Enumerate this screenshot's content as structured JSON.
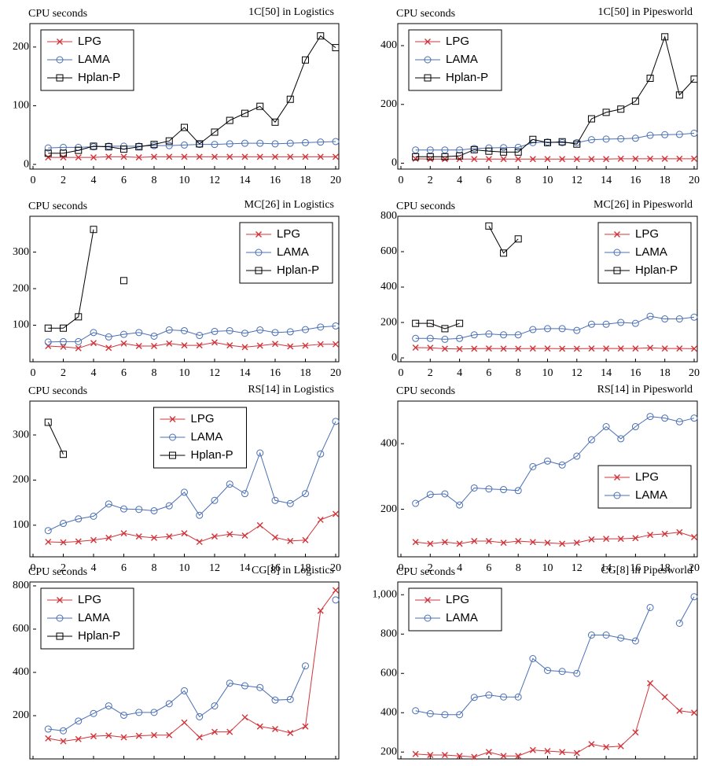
{
  "chart_data": [
    {
      "type": "line",
      "title": "1C[50] in Logistics",
      "ylabel": "CPU seconds",
      "x": [
        1,
        2,
        3,
        4,
        5,
        6,
        7,
        8,
        9,
        10,
        11,
        12,
        13,
        14,
        15,
        16,
        17,
        18,
        19,
        20
      ],
      "xlim": [
        0,
        20
      ],
      "xticks": [
        0,
        2,
        4,
        6,
        8,
        10,
        12,
        14,
        16,
        18,
        20
      ],
      "ylim": [
        -8,
        240
      ],
      "yticks": [
        0,
        100,
        200
      ],
      "legend": "upper left",
      "series": [
        {
          "name": "LPG",
          "color": "#d0343a",
          "marker": "x",
          "values": [
            12,
            12,
            12,
            12,
            13,
            13,
            12,
            13,
            13,
            13,
            13,
            13,
            13,
            13,
            13,
            13,
            13,
            13,
            13,
            13
          ]
        },
        {
          "name": "LAMA",
          "color": "#4a6fb5",
          "marker": "circle",
          "values": [
            28,
            29,
            29,
            30,
            31,
            31,
            31,
            32,
            32,
            33,
            34,
            34,
            35,
            36,
            36,
            35,
            36,
            37,
            38,
            39
          ]
        },
        {
          "name": "Hplan-P",
          "color": "#000000",
          "marker": "square",
          "values": [
            19,
            19,
            24,
            31,
            30,
            26,
            30,
            34,
            40,
            63,
            35,
            55,
            75,
            87,
            99,
            72,
            111,
            178,
            219,
            199
          ]
        }
      ]
    },
    {
      "type": "line",
      "title": "1C[50] in Pipesworld",
      "ylabel": "CPU seconds",
      "x": [
        1,
        2,
        3,
        4,
        5,
        6,
        7,
        8,
        9,
        10,
        11,
        12,
        13,
        14,
        15,
        16,
        17,
        18,
        19,
        20
      ],
      "xlim": [
        0,
        20
      ],
      "xticks": [
        0,
        2,
        4,
        6,
        8,
        10,
        12,
        14,
        16,
        18,
        20
      ],
      "ylim": [
        -20,
        475
      ],
      "yticks": [
        0,
        200,
        400
      ],
      "legend": "upper left",
      "series": [
        {
          "name": "LPG",
          "color": "#d0343a",
          "marker": "x",
          "values": [
            15,
            14,
            14,
            14,
            14,
            14,
            14,
            14,
            14,
            14,
            14,
            14,
            14,
            14,
            15,
            15,
            15,
            15,
            15,
            15
          ]
        },
        {
          "name": "LAMA",
          "color": "#4a6fb5",
          "marker": "circle",
          "values": [
            45,
            45,
            45,
            45,
            50,
            52,
            53,
            54,
            70,
            72,
            70,
            70,
            80,
            82,
            83,
            85,
            95,
            97,
            98,
            102
          ]
        },
        {
          "name": "Hplan-P",
          "color": "#000000",
          "marker": "square",
          "values": [
            22,
            22,
            22,
            25,
            46,
            41,
            38,
            38,
            81,
            70,
            73,
            65,
            151,
            173,
            184,
            211,
            289,
            430,
            232,
            286
          ]
        }
      ]
    },
    {
      "type": "line",
      "title": "MC[26] in Logistics",
      "ylabel": "CPU seconds",
      "x": [
        1,
        2,
        3,
        4,
        5,
        6,
        7,
        8,
        9,
        10,
        11,
        12,
        13,
        14,
        15,
        16,
        17,
        18,
        19,
        20
      ],
      "xlim": [
        0,
        20
      ],
      "xticks": [
        0,
        2,
        4,
        6,
        8,
        10,
        12,
        14,
        16,
        18,
        20
      ],
      "ylim": [
        0,
        398
      ],
      "yticks": [
        100,
        200,
        300
      ],
      "legend": "upper right",
      "series": [
        {
          "name": "LPG",
          "color": "#d0343a",
          "marker": "x",
          "values": [
            43,
            41,
            37,
            51,
            38,
            50,
            43,
            43,
            50,
            45,
            45,
            53,
            45,
            40,
            44,
            49,
            42,
            44,
            48,
            48
          ]
        },
        {
          "name": "LAMA",
          "color": "#4a6fb5",
          "marker": "circle",
          "values": [
            54,
            55,
            55,
            80,
            68,
            75,
            80,
            70,
            87,
            85,
            72,
            83,
            85,
            78,
            87,
            80,
            82,
            88,
            95,
            98
          ]
        },
        {
          "name": "Hplan-P",
          "color": "#000000",
          "marker": "square",
          "values": [
            92,
            92,
            123,
            362,
            null,
            222,
            null,
            null,
            null,
            null,
            null,
            null,
            null,
            null,
            null,
            null,
            null,
            null,
            null,
            null
          ]
        }
      ]
    },
    {
      "type": "line",
      "title": "MC[26] in Pipesworld",
      "ylabel": "CPU seconds",
      "x": [
        1,
        2,
        3,
        4,
        5,
        6,
        7,
        8,
        9,
        10,
        11,
        12,
        13,
        14,
        15,
        16,
        17,
        18,
        19,
        20
      ],
      "xlim": [
        0,
        20
      ],
      "xticks": [
        0,
        2,
        4,
        6,
        8,
        10,
        12,
        14,
        16,
        18,
        20
      ],
      "ylim": [
        -22,
        800
      ],
      "yticks": [
        0,
        200,
        400,
        600,
        800
      ],
      "legend": "upper right",
      "series": [
        {
          "name": "LPG",
          "color": "#d0343a",
          "marker": "x",
          "values": [
            58,
            57,
            52,
            50,
            52,
            53,
            52,
            52,
            53,
            53,
            52,
            52,
            53,
            53,
            53,
            53,
            57,
            53,
            53,
            52
          ]
        },
        {
          "name": "LAMA",
          "color": "#4a6fb5",
          "marker": "circle",
          "values": [
            110,
            110,
            105,
            110,
            130,
            135,
            130,
            130,
            160,
            165,
            165,
            155,
            190,
            190,
            200,
            195,
            235,
            220,
            220,
            230
          ]
        },
        {
          "name": "Hplan-P",
          "color": "#000000",
          "marker": "square",
          "values": [
            195,
            195,
            165,
            195,
            null,
            745,
            592,
            672,
            null,
            null,
            null,
            null,
            null,
            null,
            null,
            null,
            null,
            null,
            null,
            null
          ]
        }
      ]
    },
    {
      "type": "line",
      "title": "RS[14] in Logistics",
      "ylabel": "CPU seconds",
      "x": [
        1,
        2,
        3,
        4,
        5,
        6,
        7,
        8,
        9,
        10,
        11,
        12,
        13,
        14,
        15,
        16,
        17,
        18,
        19,
        20
      ],
      "xlim": [
        0,
        20
      ],
      "xticks": [
        0,
        2,
        4,
        6,
        8,
        10,
        12,
        14,
        16,
        18,
        20
      ],
      "ylim": [
        30,
        375
      ],
      "yticks": [
        100,
        200,
        300
      ],
      "legend": "upper center",
      "series": [
        {
          "name": "LPG",
          "color": "#d0343a",
          "marker": "x",
          "values": [
            63,
            62,
            64,
            67,
            72,
            82,
            75,
            72,
            75,
            82,
            63,
            75,
            80,
            77,
            100,
            73,
            65,
            67,
            112,
            125
          ]
        },
        {
          "name": "LAMA",
          "color": "#4a6fb5",
          "marker": "circle",
          "values": [
            88,
            104,
            114,
            120,
            147,
            136,
            135,
            132,
            143,
            173,
            122,
            155,
            191,
            170,
            260,
            155,
            148,
            170,
            258,
            330
          ]
        },
        {
          "name": "Hplan-P",
          "color": "#000000",
          "marker": "square",
          "values": [
            328,
            257,
            null,
            null,
            null,
            null,
            null,
            null,
            null,
            null,
            null,
            null,
            null,
            null,
            null,
            null,
            null,
            null,
            null,
            null
          ]
        }
      ]
    },
    {
      "type": "line",
      "title": "RS[14] in Pipesworld",
      "ylabel": "CPU seconds",
      "x": [
        1,
        2,
        3,
        4,
        5,
        6,
        7,
        8,
        9,
        10,
        11,
        12,
        13,
        14,
        15,
        16,
        17,
        18,
        19,
        20
      ],
      "xlim": [
        0,
        20
      ],
      "xticks": [
        0,
        2,
        4,
        6,
        8,
        10,
        12,
        14,
        16,
        18,
        20
      ],
      "ylim": [
        55,
        530
      ],
      "yticks": [
        200,
        400
      ],
      "legend": "center right",
      "series": [
        {
          "name": "LPG",
          "color": "#d0343a",
          "marker": "x",
          "values": [
            100,
            95,
            100,
            95,
            103,
            103,
            98,
            103,
            100,
            98,
            95,
            98,
            108,
            110,
            110,
            112,
            122,
            125,
            130,
            115
          ]
        },
        {
          "name": "LAMA",
          "color": "#4a6fb5",
          "marker": "circle",
          "values": [
            218,
            245,
            247,
            213,
            265,
            262,
            260,
            257,
            330,
            347,
            335,
            362,
            412,
            452,
            415,
            452,
            483,
            478,
            467,
            478
          ]
        }
      ]
    },
    {
      "type": "line",
      "title": "CG[8] in Logistics",
      "ylabel": "CPU seconds",
      "x": [
        1,
        2,
        3,
        4,
        5,
        6,
        7,
        8,
        9,
        10,
        11,
        12,
        13,
        14,
        15,
        16,
        17,
        18,
        19,
        20
      ],
      "xlim": [
        0,
        20
      ],
      "xticks": [
        0,
        2,
        4,
        6,
        8,
        10,
        12,
        14,
        16,
        18,
        20
      ],
      "ylim": [
        0,
        818
      ],
      "yticks": [
        200,
        400,
        600,
        800
      ],
      "legend": "upper left",
      "series": [
        {
          "name": "LPG",
          "color": "#d0343a",
          "marker": "x",
          "values": [
            95,
            82,
            92,
            105,
            108,
            100,
            107,
            110,
            110,
            168,
            100,
            125,
            125,
            192,
            150,
            138,
            120,
            150,
            685,
            780
          ]
        },
        {
          "name": "LAMA",
          "color": "#4a6fb5",
          "marker": "circle",
          "values": [
            138,
            130,
            175,
            210,
            245,
            202,
            215,
            215,
            255,
            315,
            195,
            245,
            350,
            338,
            330,
            272,
            275,
            430,
            null,
            735
          ]
        },
        {
          "name": "Hplan-P",
          "color": "#000000",
          "marker": "square",
          "values": [
            null,
            null,
            null,
            null,
            null,
            null,
            null,
            null,
            null,
            null,
            null,
            null,
            null,
            null,
            null,
            null,
            null,
            null,
            null,
            null
          ]
        }
      ]
    },
    {
      "type": "line",
      "title": "CG[8] in Pipesworld",
      "ylabel": "CPU seconds",
      "x": [
        1,
        2,
        3,
        4,
        5,
        6,
        7,
        8,
        9,
        10,
        11,
        12,
        13,
        14,
        15,
        16,
        17,
        18,
        19,
        20
      ],
      "xlim": [
        0,
        20
      ],
      "xticks": [
        0,
        2,
        4,
        6,
        8,
        10,
        12,
        14,
        16,
        18,
        20
      ],
      "ylim": [
        165,
        1065
      ],
      "yticks": [
        200,
        400,
        600,
        800,
        {
          "value": 1000,
          "label": "1,000"
        }
      ],
      "legend": "upper left",
      "series": [
        {
          "name": "LPG",
          "color": "#d0343a",
          "marker": "x",
          "values": [
            190,
            185,
            185,
            180,
            175,
            200,
            180,
            180,
            210,
            205,
            200,
            195,
            240,
            225,
            230,
            300,
            550,
            480,
            410,
            400
          ]
        },
        {
          "name": "LAMA",
          "color": "#4a6fb5",
          "marker": "circle",
          "values": [
            410,
            395,
            390,
            390,
            478,
            490,
            480,
            480,
            675,
            615,
            610,
            600,
            795,
            795,
            780,
            765,
            935,
            null,
            855,
            990
          ]
        }
      ]
    }
  ]
}
